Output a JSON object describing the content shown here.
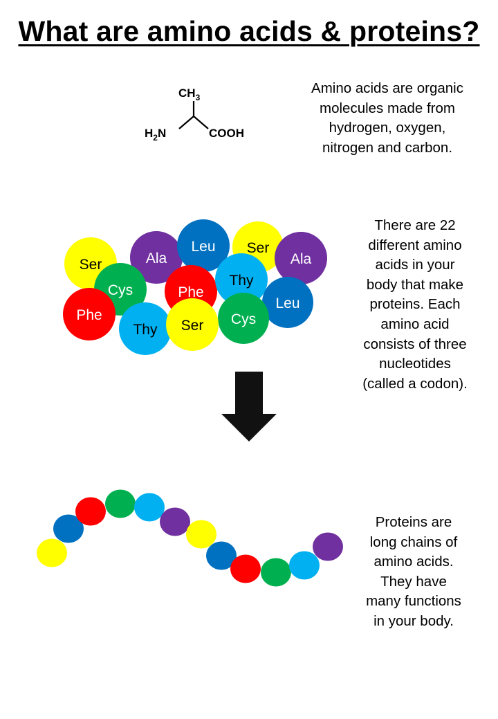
{
  "title": "What are amino acids & proteins?",
  "molecule": {
    "top_group": "CH",
    "top_sub": "3",
    "left_group_main": "H",
    "left_group_sub": "2",
    "left_group_end": "N",
    "right_group": "COOH"
  },
  "descriptions": {
    "intro": "Amino acids are organic\nmolecules made from\nhydrogen, oxygen,\nnitrogen and carbon.",
    "count": "There are 22\ndifferent amino\nacids in your\nbody that make\nproteins. Each\namino acid\nconsists of three\nnucleotides\n(called a codon).",
    "chain": "Proteins are\nlong chains of\namino acids.\nThey have\nmany functions\nin your body."
  },
  "colors": {
    "yellow": "#FFFF00",
    "purple": "#7030A0",
    "blue": "#0070C0",
    "red": "#FF0000",
    "green": "#00B050",
    "lightblue": "#00B0F0",
    "arrow": "#111111"
  },
  "amino_cluster": [
    {
      "label": "Ser",
      "color": "yellow"
    },
    {
      "label": "Ala",
      "color": "purple"
    },
    {
      "label": "Leu",
      "color": "blue"
    },
    {
      "label": "Ser",
      "color": "yellow"
    },
    {
      "label": "Ala",
      "color": "purple"
    },
    {
      "label": "Phe",
      "color": "red"
    },
    {
      "label": "Cys",
      "color": "green"
    },
    {
      "label": "Phe",
      "color": "red"
    },
    {
      "label": "Thy",
      "color": "lightblue"
    },
    {
      "label": "Leu",
      "color": "blue"
    },
    {
      "label": "Cys",
      "color": "green"
    },
    {
      "label": "Thy",
      "color": "lightblue"
    },
    {
      "label": "Ser",
      "color": "yellow"
    }
  ],
  "protein_chain": [
    "yellow",
    "blue",
    "red",
    "green",
    "lightblue",
    "purple",
    "yellow",
    "blue",
    "red",
    "green",
    "lightblue",
    "purple"
  ]
}
